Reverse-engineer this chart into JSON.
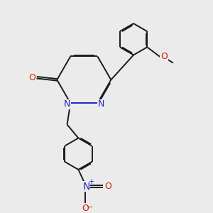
{
  "bg_color": "#ebebeb",
  "bond_color": "#1a1a1a",
  "n_color": "#2222cc",
  "o_color": "#cc2200",
  "lw": 1.4,
  "dbo": 0.018,
  "fs": 9,
  "xlim": [
    -2.5,
    4.5
  ],
  "ylim": [
    -5.5,
    3.5
  ]
}
